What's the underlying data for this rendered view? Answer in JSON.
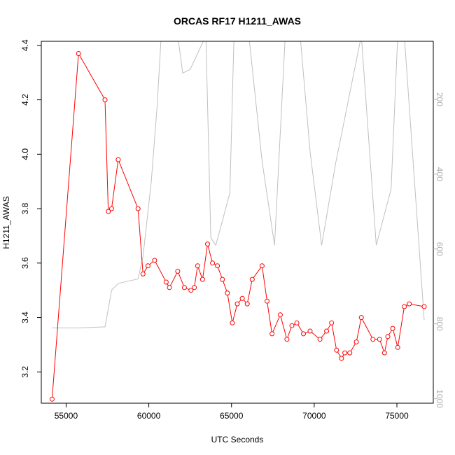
{
  "chart_data": {
    "type": "line",
    "title": "ORCAS RF17 H1211_AWAS",
    "xlabel": "UTC Seconds",
    "ylabel": "H1211_AWAS",
    "xlim": [
      53500,
      77200
    ],
    "ylim": [
      3.085,
      4.415
    ],
    "x_ticks": [
      55000,
      60000,
      65000,
      70000,
      75000
    ],
    "x_tick_labels": [
      "55000",
      "60000",
      "65000",
      "70000",
      "75000"
    ],
    "y_ticks": [
      3.2,
      3.4,
      3.6,
      3.8,
      4.0,
      4.2,
      4.4
    ],
    "y_tick_labels": [
      "3.2",
      "3.4",
      "3.6",
      "3.8",
      "4.0",
      "4.2",
      "4.4"
    ],
    "y2_ticks": [
      200,
      400,
      600,
      800,
      1000
    ],
    "y2_tick_labels": [
      "200",
      "400",
      "600",
      "800",
      "1000"
    ],
    "y2lim": [
      1012,
      45
    ],
    "y2_reversed": true,
    "grid": false,
    "series": [
      {
        "role": "primary",
        "color": "#ff0000",
        "marker": "open-circle",
        "x": [
          54150,
          55750,
          57350,
          57550,
          57750,
          58150,
          59350,
          59650,
          59950,
          60350,
          61050,
          61250,
          61750,
          62150,
          62550,
          62750,
          62950,
          63250,
          63550,
          63850,
          64150,
          64450,
          64750,
          65050,
          65350,
          65650,
          65950,
          66250,
          66850,
          67150,
          67450,
          67950,
          68350,
          68650,
          68950,
          69350,
          69750,
          70350,
          70750,
          71050,
          71350,
          71650,
          71850,
          72150,
          72550,
          72850,
          73550,
          73950,
          74250,
          74450,
          74750,
          75050,
          75450,
          75750,
          76650
        ],
        "y": [
          3.1,
          4.37,
          4.2,
          3.79,
          3.8,
          3.98,
          3.8,
          3.56,
          3.59,
          3.61,
          3.53,
          3.51,
          3.57,
          3.51,
          3.5,
          3.51,
          3.59,
          3.54,
          3.67,
          3.6,
          3.59,
          3.54,
          3.49,
          3.38,
          3.45,
          3.47,
          3.45,
          3.54,
          3.59,
          3.46,
          3.34,
          3.41,
          3.32,
          3.37,
          3.38,
          3.34,
          3.35,
          3.32,
          3.35,
          3.38,
          3.28,
          3.25,
          3.27,
          3.27,
          3.31,
          3.4,
          3.32,
          3.32,
          3.27,
          3.33,
          3.36,
          3.29,
          3.44,
          3.45,
          3.44
        ]
      },
      {
        "role": "secondary-right-axis",
        "color": "#c0c0c0",
        "x": [
          54150,
          55750,
          57350,
          57550,
          57750,
          58150,
          59350,
          59650,
          60150,
          60500,
          60750,
          61750,
          62050,
          62500,
          63450,
          63750,
          64050,
          64900,
          65150,
          66050,
          66850,
          67600,
          68250,
          69150,
          69750,
          70450,
          71300,
          72850,
          73750,
          74650,
          75050,
          75450,
          76650
        ],
        "y": [
          811,
          811,
          808,
          760,
          710,
          692,
          680,
          620,
          420,
          220,
          30,
          30,
          130,
          120,
          30,
          570,
          590,
          450,
          30,
          30,
          365,
          590,
          30,
          30,
          340,
          590,
          370,
          30,
          590,
          440,
          30,
          30,
          790
        ]
      }
    ]
  }
}
